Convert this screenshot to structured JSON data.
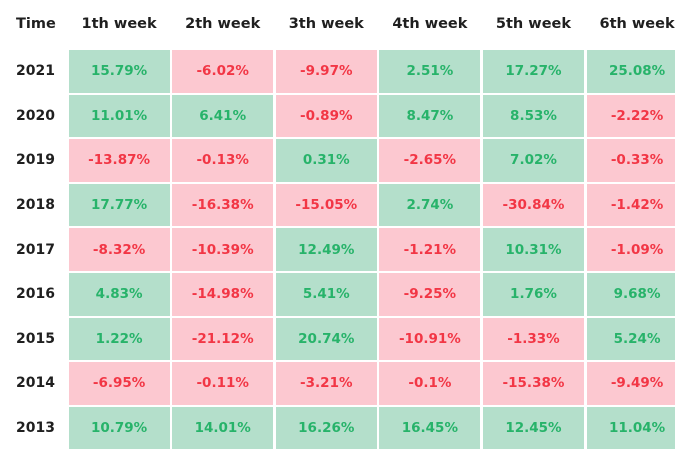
{
  "chart_data": {
    "type": "heatmap",
    "corner_label": "Time",
    "columns": [
      "1th week",
      "2th week",
      "3th week",
      "4th week",
      "5th week",
      "6th week"
    ],
    "rows": [
      {
        "label": "2021",
        "values": [
          "15.79%",
          "-6.02%",
          "-9.97%",
          "2.51%",
          "17.27%",
          "25.08%"
        ]
      },
      {
        "label": "2020",
        "values": [
          "11.01%",
          "6.41%",
          "-0.89%",
          "8.47%",
          "8.53%",
          "-2.22%"
        ]
      },
      {
        "label": "2019",
        "values": [
          "-13.87%",
          "-0.13%",
          "0.31%",
          "-2.65%",
          "7.02%",
          "-0.33%"
        ]
      },
      {
        "label": "2018",
        "values": [
          "17.77%",
          "-16.38%",
          "-15.05%",
          "2.74%",
          "-30.84%",
          "-1.42%"
        ]
      },
      {
        "label": "2017",
        "values": [
          "-8.32%",
          "-10.39%",
          "12.49%",
          "-1.21%",
          "10.31%",
          "-1.09%"
        ]
      },
      {
        "label": "2016",
        "values": [
          "4.83%",
          "-14.98%",
          "5.41%",
          "-9.25%",
          "1.76%",
          "9.68%"
        ]
      },
      {
        "label": "2015",
        "values": [
          "1.22%",
          "-21.12%",
          "20.74%",
          "-10.91%",
          "-1.33%",
          "5.24%"
        ]
      },
      {
        "label": "2014",
        "values": [
          "-6.95%",
          "-0.11%",
          "-3.21%",
          "-0.1%",
          "-15.38%",
          "-9.49%"
        ]
      },
      {
        "label": "2013",
        "values": [
          "10.79%",
          "14.01%",
          "16.26%",
          "16.45%",
          "12.45%",
          "11.04%"
        ]
      }
    ],
    "colors": {
      "positive_bg": "#b4dfcb",
      "positive_text": "#27b36a",
      "negative_bg": "#fcc8d0",
      "negative_text": "#f23645"
    }
  }
}
